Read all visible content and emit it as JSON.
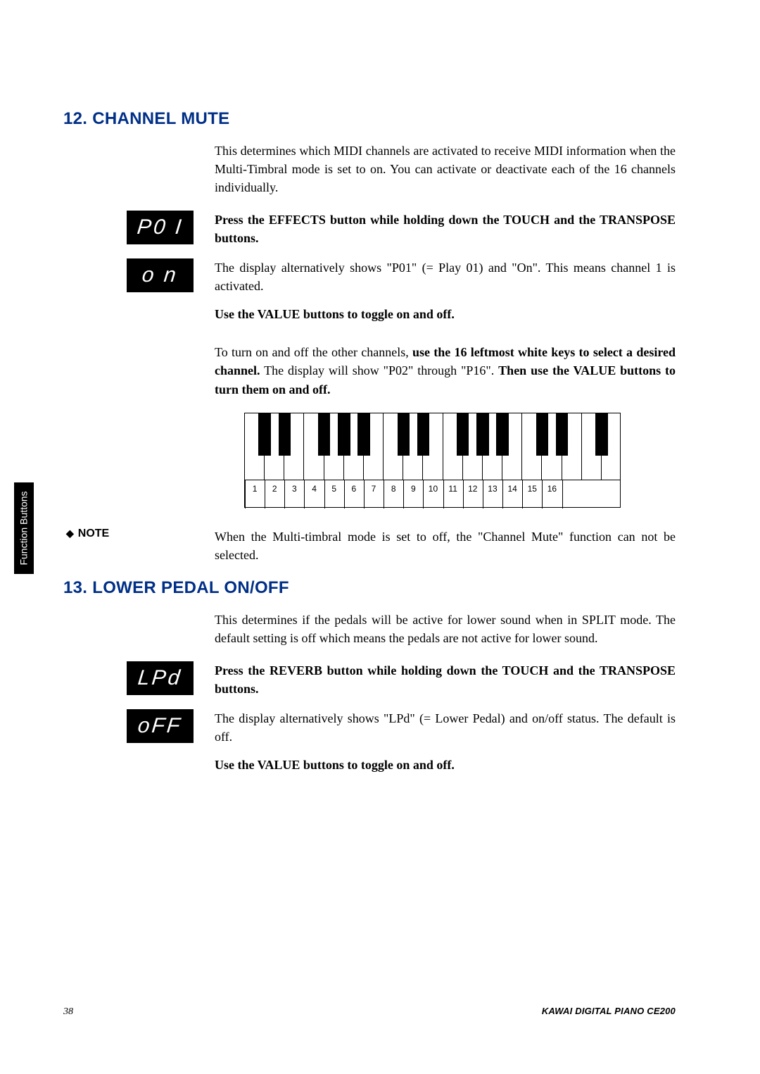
{
  "tab_label": "Function Buttons",
  "heading_color": "#002f87",
  "section12": {
    "title": "12. CHANNEL MUTE",
    "intro": "This determines which MIDI channels are activated to receive MIDI information when the Multi-Timbral mode is set to on.  You can activate or deactivate each of the 16 channels individually.",
    "lcd1": "P0 I",
    "instruction1": "Press the EFFECTS button while holding down the TOUCH and the TRANSPOSE buttons.",
    "lcd2": "o n",
    "para2": "The display alternatively shows \"P01\" (= Play 01) and \"On\".  This means channel 1 is activated.",
    "instruction2": "Use the VALUE buttons to toggle on and off.",
    "para3_pre": "To turn on and off the other channels, ",
    "para3_bold1": "use the 16 leftmost white keys to select a desired channel.",
    "para3_mid": "  The display will show \"P02\" through \"P16\".  ",
    "para3_bold2": "Then use the VALUE buttons to turn them on and off.",
    "note_label": "NOTE",
    "note_text": "When the Multi-timbral mode is set to off, the \"Channel Mute\" function can not be selected."
  },
  "keyboard": {
    "white_count": 19,
    "labels": [
      "1",
      "2",
      "3",
      "4",
      "5",
      "6",
      "7",
      "8",
      "9",
      "10",
      "11",
      "12",
      "13",
      "14",
      "15",
      "16"
    ],
    "black_pattern": [
      1,
      2,
      4,
      5,
      6,
      8,
      9,
      11,
      12,
      13,
      15,
      16,
      18
    ],
    "black_width_ratio": 0.62
  },
  "section13": {
    "title": "13. LOWER PEDAL ON/OFF",
    "intro": "This determines if the pedals will be active for lower sound when in SPLIT mode.  The default setting is off which means the pedals are not active for lower sound.",
    "lcd1": "LPd",
    "instruction1": "Press the REVERB button while holding down the TOUCH and the TRANSPOSE buttons.",
    "lcd2": "oFF",
    "para2": "The display alternatively shows \"LPd\" (= Lower Pedal) and on/off status.  The default is off.",
    "instruction2": "Use the VALUE buttons to toggle on and off."
  },
  "footer": {
    "page": "38",
    "product": "KAWAI DIGITAL PIANO CE200"
  }
}
